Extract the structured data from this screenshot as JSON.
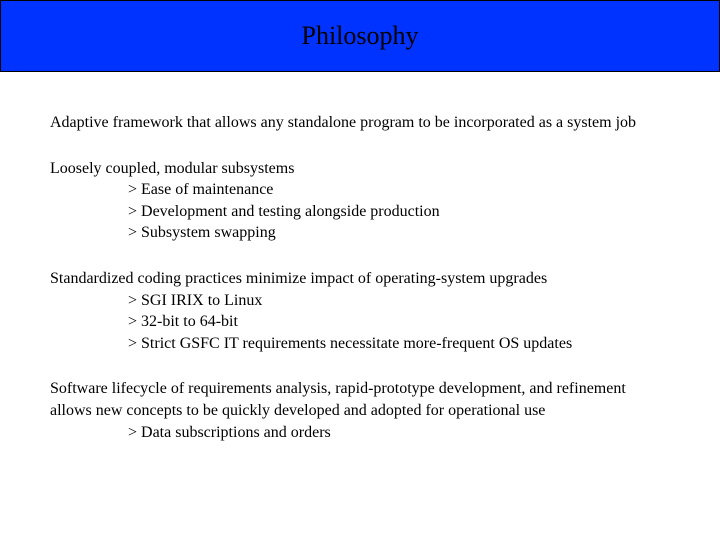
{
  "header": {
    "title": "Philosophy",
    "background_color": "#0033ff",
    "text_color": "#000000",
    "border_color": "#000000",
    "fontsize": 26
  },
  "body": {
    "fontsize": 16,
    "text_color": "#000000",
    "background_color": "#ffffff",
    "font_family": "serif"
  },
  "sections": [
    {
      "text": "Adaptive framework that allows any standalone program to be incorporated as a system job",
      "subs": []
    },
    {
      "text": "Loosely coupled, modular subsystems",
      "subs": [
        "> Ease of maintenance",
        "> Development and testing alongside production",
        "> Subsystem swapping"
      ]
    },
    {
      "text": "Standardized coding practices minimize impact of operating-system upgrades",
      "subs": [
        "> SGI IRIX to Linux",
        "> 32-bit to 64-bit",
        "> Strict GSFC IT requirements necessitate more-frequent OS updates"
      ]
    },
    {
      "text": "Software lifecycle of requirements analysis, rapid-prototype development, and refinement allows new concepts to be quickly developed and adopted for operational use",
      "subs": [
        "> Data subscriptions and orders"
      ]
    }
  ]
}
